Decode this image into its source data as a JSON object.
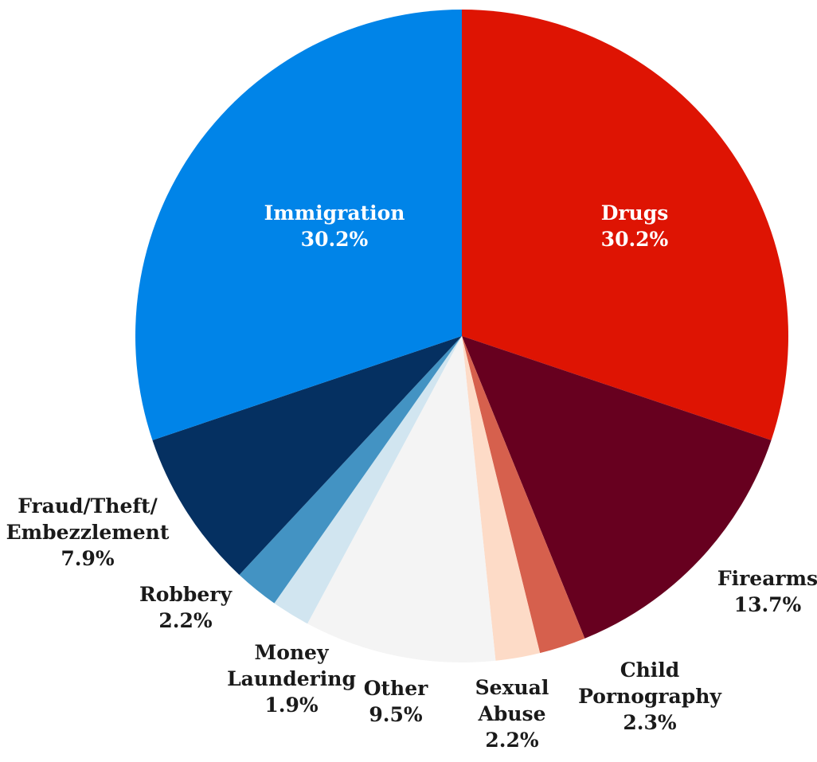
{
  "chart_data": {
    "type": "pie",
    "title": "",
    "start": "12 o'clock, clockwise",
    "slices": [
      {
        "name": [
          "Drugs"
        ],
        "value": 30.2,
        "label": "30.2%",
        "color": "#de1403",
        "label_style": "inside"
      },
      {
        "name": [
          "Firearms"
        ],
        "value": 13.7,
        "label": "13.7%",
        "color": "#67001f",
        "label_style": "outside"
      },
      {
        "name": [
          "Child",
          "Pornography"
        ],
        "value": 2.3,
        "label": "2.3%",
        "color": "#d6604d",
        "label_style": "outside"
      },
      {
        "name": [
          "Sexual",
          "Abuse"
        ],
        "value": 2.2,
        "label": "2.2%",
        "color": "#fddbc7",
        "label_style": "outside"
      },
      {
        "name": [
          "Other"
        ],
        "value": 9.5,
        "label": "9.5%",
        "color": "#f4f4f4",
        "label_style": "outside"
      },
      {
        "name": [
          "Money",
          "Laundering"
        ],
        "value": 1.9,
        "label": "1.9%",
        "color": "#d1e5f0",
        "label_style": "outside"
      },
      {
        "name": [
          "Robbery"
        ],
        "value": 2.2,
        "label": "2.2%",
        "color": "#4393c3",
        "label_style": "outside"
      },
      {
        "name": [
          "Fraud/Theft/",
          "Embezzlement"
        ],
        "value": 7.9,
        "label": "7.9%",
        "color": "#053061",
        "label_style": "outside"
      },
      {
        "name": [
          "Immigration"
        ],
        "value": 30.2,
        "label": "30.2%",
        "color": "#0084e8",
        "label_style": "inside"
      }
    ]
  }
}
